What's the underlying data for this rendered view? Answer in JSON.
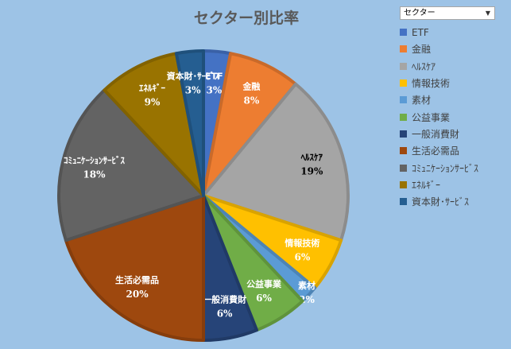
{
  "chart_data": {
    "type": "pie",
    "title": "セクター別比率",
    "filter_label": "セクター",
    "slices": [
      {
        "name": "ETF",
        "value": 3,
        "label": "3%",
        "color": "#4472c4",
        "label_color": "#ffffff"
      },
      {
        "name": "金融",
        "value": 8,
        "label": "8%",
        "color": "#ed7d31",
        "label_color": "#ffffff"
      },
      {
        "name": "ﾍﾙｽｹｱ",
        "value": 19,
        "label": "19%",
        "color": "#a5a5a5",
        "label_color": "#000000"
      },
      {
        "name": "情報技術",
        "value": 6,
        "label": "6%",
        "color": "#ffc000",
        "label_color": "#ffffff"
      },
      {
        "name": "素材",
        "value": 2,
        "label": "2%",
        "color": "#5b9bd5",
        "label_color": "#ffffff"
      },
      {
        "name": "公益事業",
        "value": 6,
        "label": "6%",
        "color": "#70ad47",
        "label_color": "#ffffff"
      },
      {
        "name": "一般消費財",
        "value": 6,
        "label": "6%",
        "color": "#264478",
        "label_color": "#ffffff"
      },
      {
        "name": "生活必需品",
        "value": 20,
        "label": "20%",
        "color": "#9e480e",
        "label_color": "#ffffff"
      },
      {
        "name": "ｺﾐｭﾆｹｰｼｮﾝｻｰﾋﾞｽ",
        "value": 18,
        "label": "18%",
        "color": "#636363",
        "label_color": "#ffffff"
      },
      {
        "name": "ｴﾈﾙｷﾞｰ",
        "value": 9,
        "label": "9%",
        "color": "#997300",
        "label_color": "#ffffff"
      },
      {
        "name": "資本財･ｻｰﾋﾞｽ",
        "value": 3,
        "label": "3%",
        "color": "#255e91",
        "label_color": "#ffffff"
      }
    ]
  }
}
